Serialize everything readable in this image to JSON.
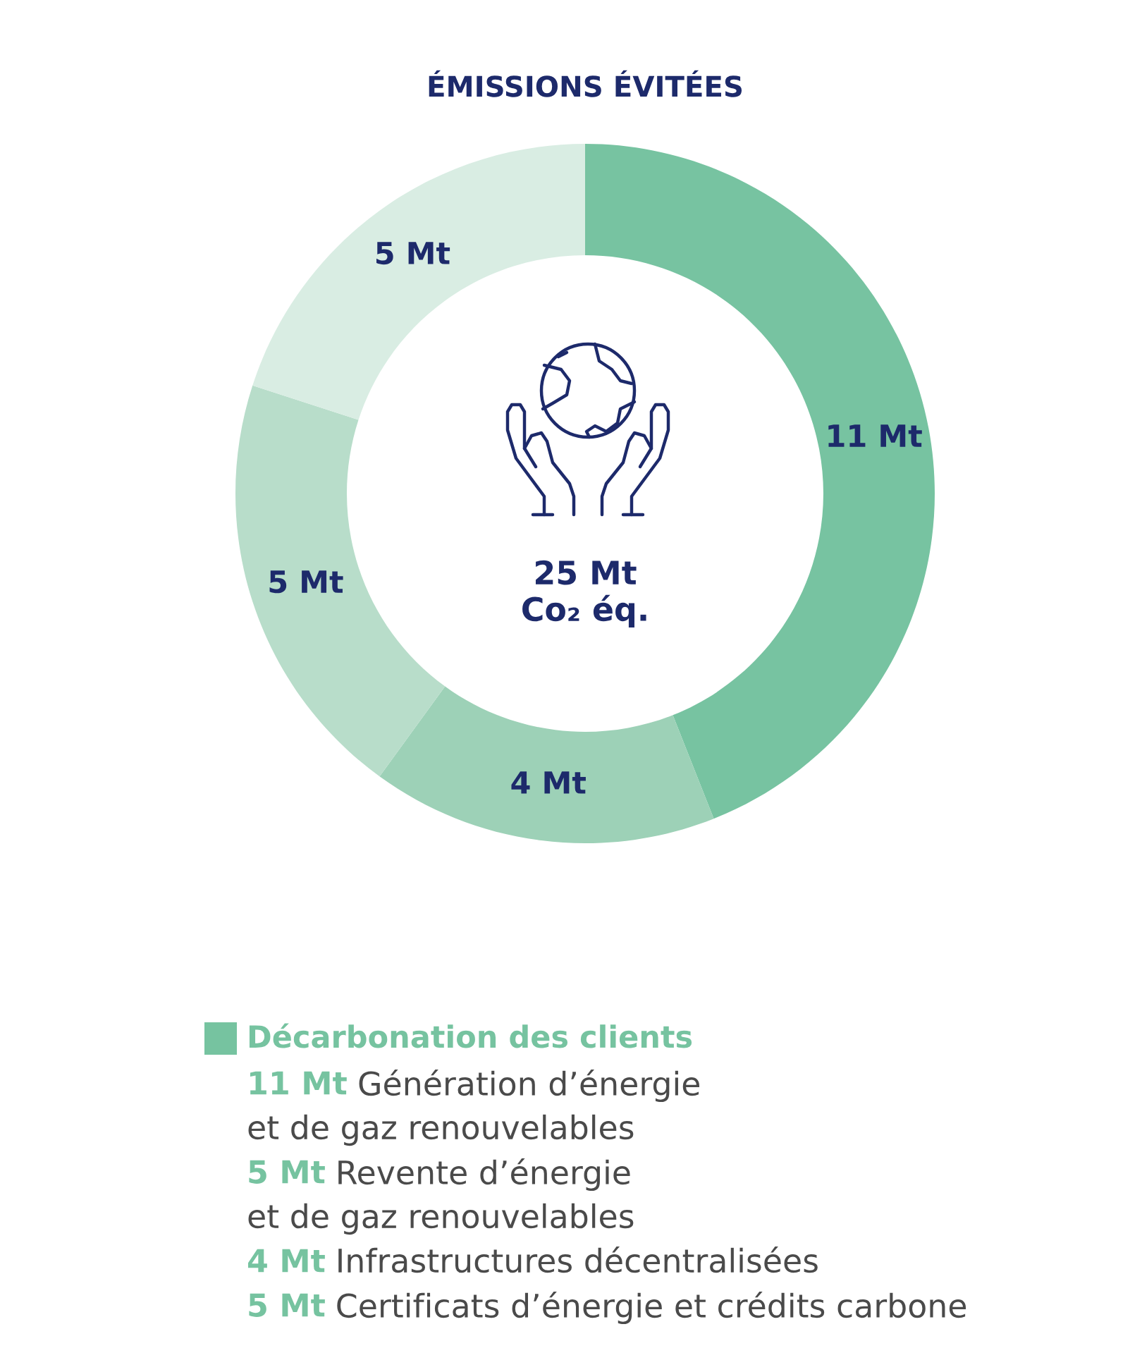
{
  "chart_data": {
    "type": "donut",
    "title": "ÉMISSIONS ÉVITÉES",
    "categories": [
      null,
      null,
      null,
      null
    ],
    "series": [
      {
        "name": "Décarbonation des clients",
        "color": "#76c3a0",
        "values": [
          11,
          4,
          5,
          5
        ],
        "colors": [
          "#77c3a1",
          "#9dd1b7",
          "#b8ddca",
          "#d9ede3"
        ],
        "value_labels": [
          "11 Mt",
          "4 Mt",
          "5 Mt",
          "5 Mt"
        ]
      }
    ],
    "annotations": [
      "25 Mt\nCo₂ éq.",
      "11 Mt",
      "Génération d’énergie\net de gaz renouvelables",
      "5 Mt",
      "Revente d’énergie\net de gaz renouvelables",
      "4 Mt",
      "Infrastructures décentralisées",
      "5 Mt",
      "Certificats d’énergie et crédits carbone"
    ],
    "legend": "bottom"
  }
}
